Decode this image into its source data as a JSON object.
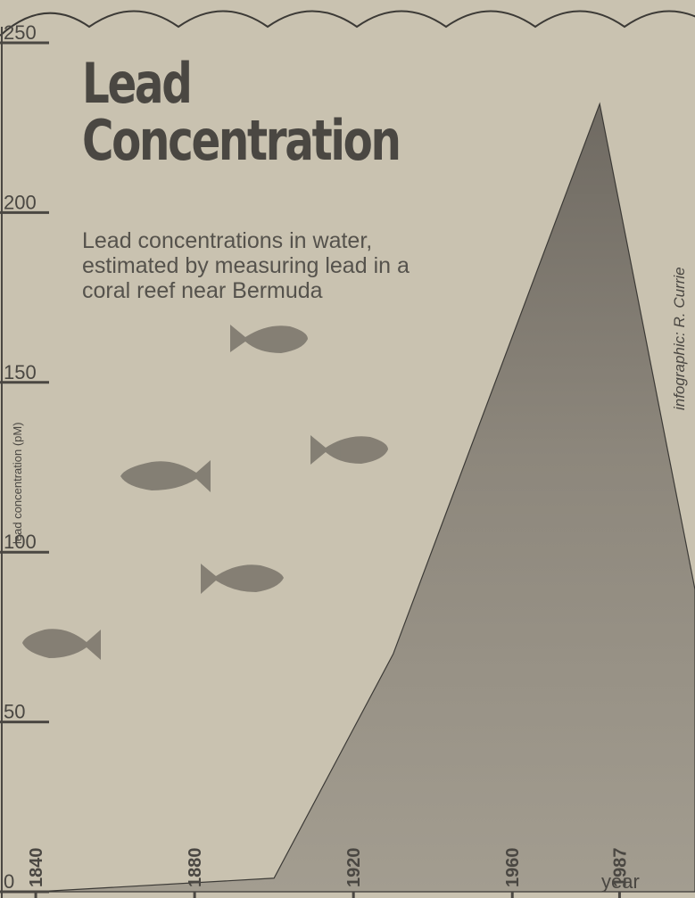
{
  "chart_data": {
    "type": "area",
    "title": "Lead Concentration",
    "subtitle": "Lead concentrations in water, estimated by measuring lead in a coral reef near Bermuda",
    "y_label": "lead concentration (pM)",
    "x_label": "year",
    "credit": "infographic: R. Currie",
    "x": [
      1840,
      1900,
      1930,
      1982,
      2006
    ],
    "values": [
      0,
      4,
      70,
      232,
      89
    ],
    "color": "#8d877c",
    "xlim": [
      1831,
      2006
    ],
    "xticks": [
      1840,
      1880,
      1920,
      1960,
      1987
    ],
    "ylim": [
      0,
      250
    ],
    "yticks": [
      0,
      50,
      100,
      150,
      200,
      250
    ]
  }
}
